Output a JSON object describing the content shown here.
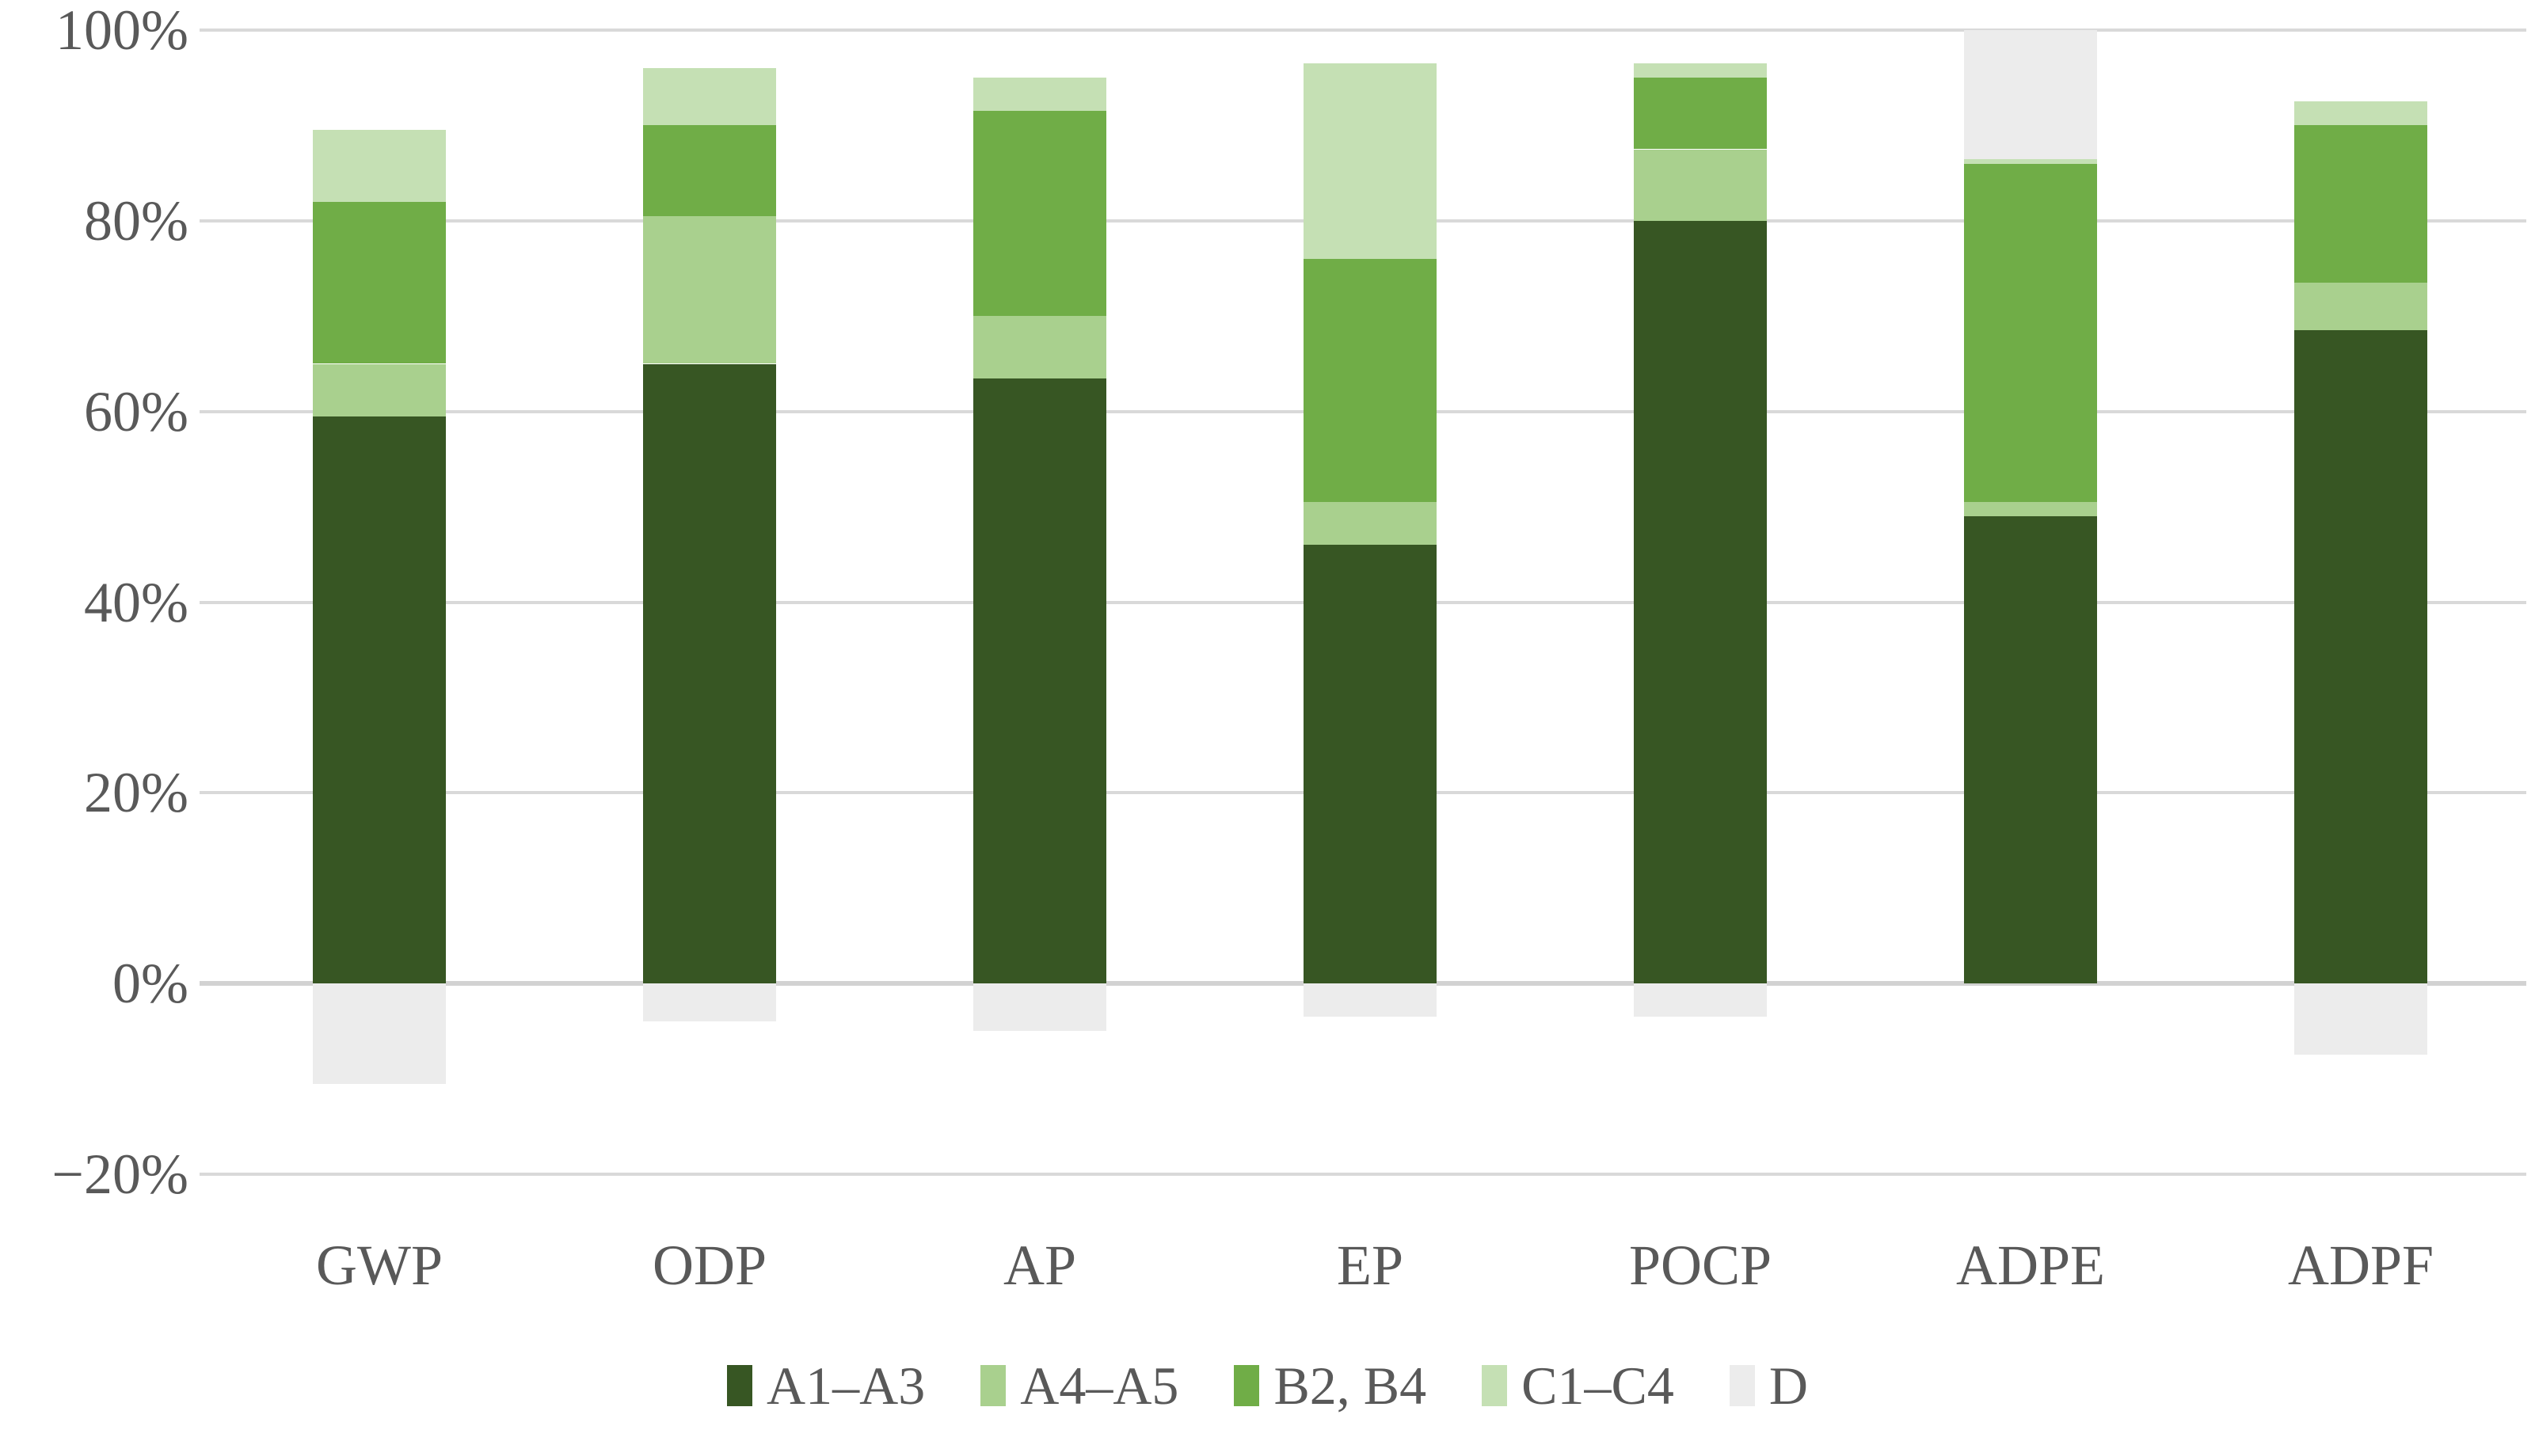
{
  "chart_data": {
    "type": "bar",
    "stacked": true,
    "title": "",
    "xlabel": "",
    "ylabel": "",
    "categories": [
      "GWP",
      "ODP",
      "AP",
      "EP",
      "POCP",
      "ADPE",
      "ADPF"
    ],
    "series": [
      {
        "name": "A1–A3",
        "color": "#375623",
        "values": [
          59.5,
          65,
          63.5,
          46,
          80,
          49,
          68.5
        ]
      },
      {
        "name": "A4–A5",
        "color": "#A9D08E",
        "values": [
          5.5,
          15.5,
          6.5,
          4.5,
          7.5,
          1.5,
          5
        ]
      },
      {
        "name": "B2, B4",
        "color": "#70AD47",
        "values": [
          17,
          9.5,
          21.5,
          25.5,
          7.5,
          35.5,
          16.5
        ]
      },
      {
        "name": "C1–C4",
        "color": "#C5E0B4",
        "values": [
          7.5,
          6,
          3.5,
          20.5,
          1.5,
          0.5,
          2.5
        ]
      },
      {
        "name": "D",
        "color": "#ECECEC",
        "values": [
          -10.5,
          -4,
          -5,
          -3.5,
          -3.5,
          13.5,
          -7.5
        ]
      }
    ],
    "ylim": [
      -20,
      100
    ],
    "ytick_step": 20,
    "ytick_labels": [
      "100%",
      "80%",
      "60%",
      "40%",
      "20%",
      "0%",
      "−20%"
    ],
    "grid": true,
    "gridline_color": "#D9D9D9",
    "axis_text_color": "#595959",
    "legend_position": "bottom",
    "legend_entries": [
      "A1–A3",
      "A4–A5",
      "B2, B4",
      "C1–C4",
      "D"
    ]
  }
}
